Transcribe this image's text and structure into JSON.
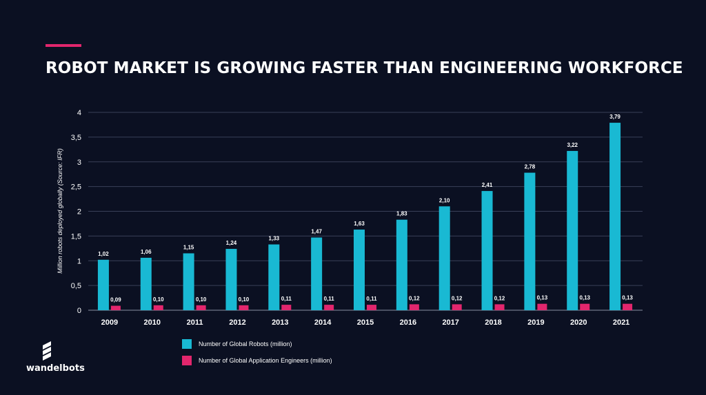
{
  "header": {
    "title": "ROBOT MARKET IS GROWING FASTER THAN ENGINEERING WORKFORCE"
  },
  "colors": {
    "background": "#0b1022",
    "accent": "#e2266d",
    "robots": "#19b9d3",
    "engineers": "#e2266d",
    "grid": "#3a4058"
  },
  "chart_data": {
    "type": "bar",
    "title": "ROBOT MARKET IS GROWING FASTER THAN ENGINEERING WORKFORCE",
    "xlabel": "",
    "ylabel": "Million robots deployed globally (Source: IFR)",
    "ylim": [
      0,
      4
    ],
    "yticks": [
      "0",
      "0,5",
      "1",
      "1,5",
      "2",
      "2,5",
      "3",
      "3,5",
      "4"
    ],
    "ytick_values": [
      0,
      0.5,
      1,
      1.5,
      2,
      2.5,
      3,
      3.5,
      4
    ],
    "categories": [
      "2009",
      "2010",
      "2011",
      "2012",
      "2013",
      "2014",
      "2015",
      "2016",
      "2017",
      "2018",
      "2019",
      "2020",
      "2021"
    ],
    "grid": true,
    "legend_position": "bottom-left",
    "series": [
      {
        "name": "Number of Global Robots (million)",
        "color_key": "robots",
        "values": [
          1.02,
          1.06,
          1.15,
          1.24,
          1.33,
          1.47,
          1.63,
          1.83,
          2.1,
          2.41,
          2.78,
          3.22,
          3.79
        ],
        "labels": [
          "1,02",
          "1,06",
          "1,15",
          "1,24",
          "1,33",
          "1,47",
          "1,63",
          "1,83",
          "2,10",
          "2,41",
          "2,78",
          "3,22",
          "3,79"
        ]
      },
      {
        "name": "Number of Global Application Engineers (million)",
        "color_key": "engineers",
        "values": [
          0.09,
          0.1,
          0.1,
          0.1,
          0.11,
          0.11,
          0.11,
          0.12,
          0.12,
          0.12,
          0.13,
          0.13,
          0.13
        ],
        "labels": [
          "0,09",
          "0,10",
          "0,10",
          "0,10",
          "0,11",
          "0,11",
          "0,11",
          "0,12",
          "0,12",
          "0,12",
          "0,13",
          "0,13",
          "0,13"
        ]
      }
    ]
  },
  "legend": {
    "items": [
      {
        "label": "Number of Global Robots (million)",
        "color": "#19b9d3"
      },
      {
        "label": "Number of Global Application Engineers (million)",
        "color": "#e2266d"
      }
    ]
  },
  "brand": {
    "name": "wandelbots"
  }
}
